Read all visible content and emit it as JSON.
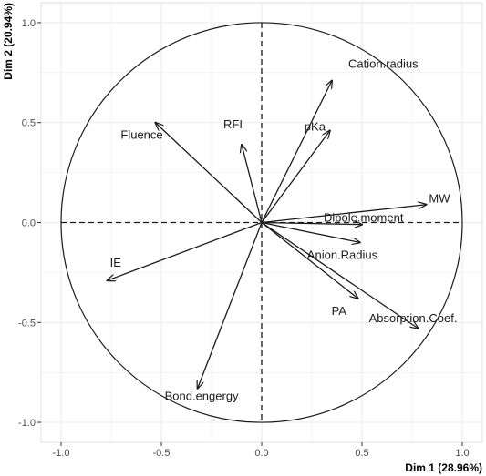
{
  "chart_data": {
    "type": "scatter",
    "subtype": "pca-correlation-circle",
    "title": "",
    "xlabel": "Dim 1 (28.96%)",
    "ylabel": "Dim 2 (20.94%)",
    "xlim": [
      -1.1,
      1.1
    ],
    "ylim": [
      -1.1,
      1.1
    ],
    "x_ticks": [
      "-1.0",
      "-0.5",
      "0.0",
      "0.5",
      "1.0"
    ],
    "y_ticks": [
      "-1.0",
      "-0.5",
      "0.0",
      "0.5",
      "1.0"
    ],
    "grid": true,
    "unit_circle": true,
    "arrow_color": "#1a1a1a",
    "grid_color": "#ebebeb",
    "variables": [
      {
        "name": "Cation.radius",
        "x": 0.35,
        "y": 0.71
      },
      {
        "name": "pKa",
        "x": 0.34,
        "y": 0.46
      },
      {
        "name": "RFI",
        "x": -0.1,
        "y": 0.39
      },
      {
        "name": "Fluence",
        "x": -0.53,
        "y": 0.5
      },
      {
        "name": "MW",
        "x": 0.82,
        "y": 0.09
      },
      {
        "name": "Dipole.moment",
        "x": 0.5,
        "y": -0.01
      },
      {
        "name": "Anion.Radius",
        "x": 0.49,
        "y": -0.1
      },
      {
        "name": "PA",
        "x": 0.48,
        "y": -0.38
      },
      {
        "name": "Absorption.Coef.",
        "x": 0.78,
        "y": -0.53
      },
      {
        "name": "IE",
        "x": -0.77,
        "y": -0.29
      },
      {
        "name": "Bond.engergy",
        "x": -0.32,
        "y": -0.83
      }
    ]
  }
}
